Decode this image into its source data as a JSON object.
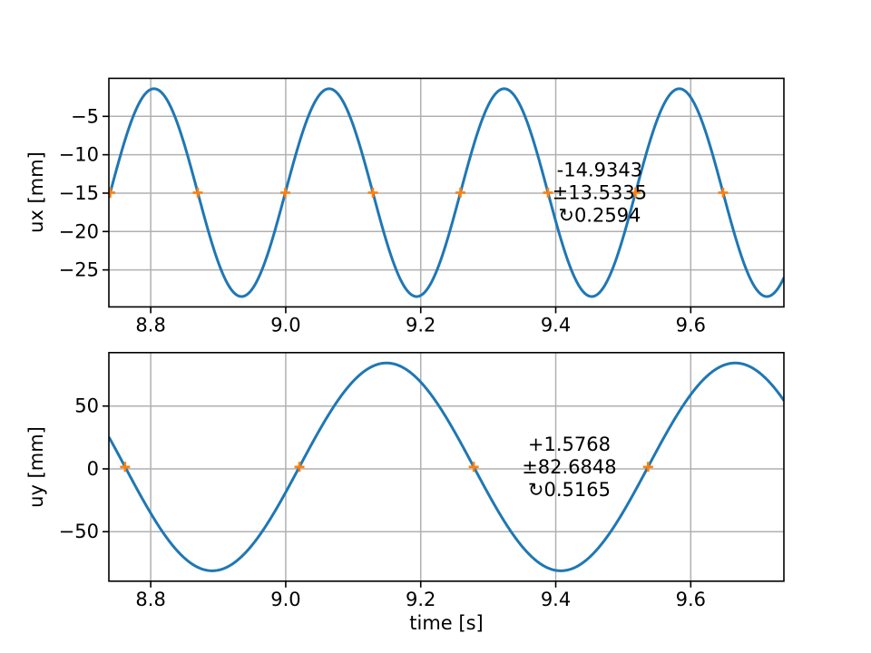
{
  "figure": {
    "background": "#ffffff"
  },
  "colors": {
    "line": "#1f77b4",
    "marker": "#ff7f0e",
    "grid": "#b0b0b0",
    "spine": "#000000",
    "text": "#000000"
  },
  "chart_data": [
    {
      "type": "line",
      "ylabel": "ux [mm]",
      "xlabel": "",
      "grid": true,
      "xlim": [
        8.738,
        9.738
      ],
      "ylim": [
        -29.82,
        -0.05
      ],
      "xticks": {
        "values": [
          8.8,
          9.0,
          9.2,
          9.4,
          9.6
        ],
        "labels": [
          "8.8",
          "9.0",
          "9.2",
          "9.4",
          "9.6"
        ]
      },
      "yticks": {
        "values": [
          -5,
          -10,
          -15,
          -20,
          -25
        ],
        "labels": [
          "−5",
          "−10",
          "−15",
          "−20",
          "−25"
        ]
      },
      "series": [
        {
          "name": "ux",
          "model": "sine",
          "mean": -14.9343,
          "amplitude": 13.5335,
          "period": 0.2594,
          "zero_crossing": 8.74,
          "crossing_direction": "up",
          "color": "#1f77b4"
        }
      ],
      "markers": {
        "shape": "plus",
        "color": "#ff7f0e",
        "y": -14.9343,
        "x": [
          8.74,
          8.8697,
          8.9994,
          9.1291,
          9.2588,
          9.3885,
          9.5182,
          9.6479
        ]
      },
      "annotation": {
        "lines": [
          "-14.9343",
          "±13.5335",
          "↻0.2594"
        ],
        "x": 9.465,
        "y": -14.9343
      }
    },
    {
      "type": "line",
      "ylabel": "uy [mm]",
      "xlabel": "time [s]",
      "grid": true,
      "xlim": [
        8.738,
        9.738
      ],
      "ylim": [
        -89.38,
        92.53
      ],
      "xticks": {
        "values": [
          8.8,
          9.0,
          9.2,
          9.4,
          9.6
        ],
        "labels": [
          "8.8",
          "9.0",
          "9.2",
          "9.4",
          "9.6"
        ]
      },
      "yticks": {
        "values": [
          50,
          0,
          -50
        ],
        "labels": [
          "50",
          "0",
          "−50"
        ]
      },
      "series": [
        {
          "name": "uy",
          "model": "sine",
          "mean": 1.5768,
          "amplitude": 82.6848,
          "period": 0.5165,
          "zero_crossing": 8.762,
          "crossing_direction": "down",
          "color": "#1f77b4"
        }
      ],
      "markers": {
        "shape": "plus",
        "color": "#ff7f0e",
        "y": 1.5768,
        "x": [
          8.762,
          9.0203,
          9.2785,
          9.5368
        ]
      },
      "annotation": {
        "lines": [
          "+1.5768",
          "±82.6848",
          "↻0.5165"
        ],
        "x": 9.42,
        "y": 1.5768
      }
    }
  ]
}
